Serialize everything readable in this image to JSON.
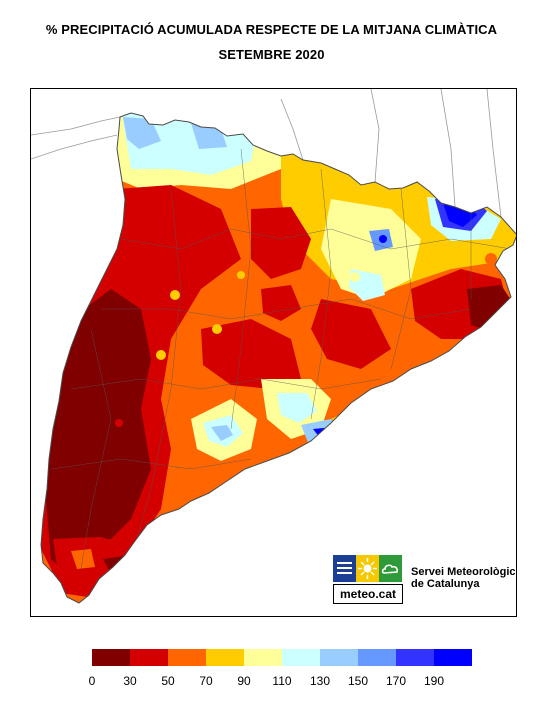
{
  "title": {
    "line1": "% PRECIPITACIÓ ACUMULADA RESPECTE DE LA MITJANA CLIMÀTICA",
    "line2": "SETEMBRE 2020"
  },
  "logo": {
    "text": "meteo.cat",
    "org_line1": "Servei Meteorològic",
    "org_line2": "de Catalunya",
    "colors": [
      "#1b3f94",
      "#f6c800",
      "#2f9a3a"
    ]
  },
  "legend": {
    "colors": [
      "#800000",
      "#d40000",
      "#ff6600",
      "#ffcc00",
      "#ffff99",
      "#ccffff",
      "#99ccff",
      "#6699ff",
      "#3333ff",
      "#0000ff"
    ],
    "ticks": [
      "0",
      "30",
      "50",
      "70",
      "90",
      "110",
      "130",
      "150",
      "170",
      "190"
    ]
  },
  "map": {
    "background": "#ffffff",
    "border_color": "#4a4a4a"
  }
}
